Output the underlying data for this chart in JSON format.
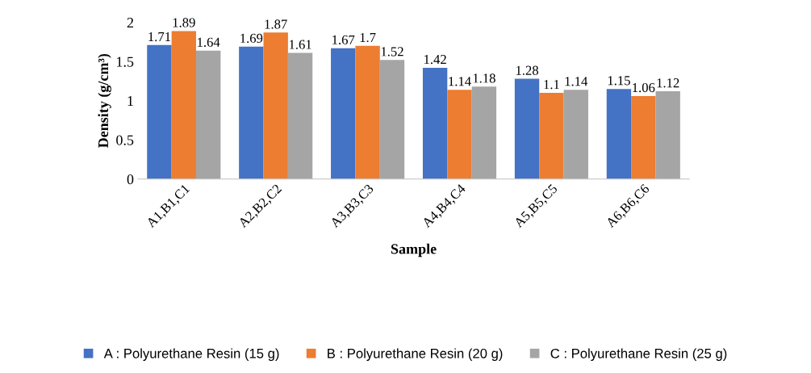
{
  "chart_data": {
    "type": "bar",
    "xlabel": "Sample",
    "ylabel": "Density (g/cm³)",
    "categories": [
      "A1,B1,C1",
      "A2,B2,C2",
      "A3,B3,C3",
      "A4,B4,C4",
      "A5,B5,C5",
      "A6,B6,C6"
    ],
    "series": [
      {
        "name": "A : Polyurethane Resin (15 g)",
        "color": "#4472c4",
        "values": [
          1.71,
          1.69,
          1.67,
          1.42,
          1.28,
          1.15
        ]
      },
      {
        "name": "B : Polyurethane Resin (20 g)",
        "color": "#ed7d31",
        "values": [
          1.89,
          1.87,
          1.7,
          1.14,
          1.1,
          1.06
        ]
      },
      {
        "name": "C : Polyurethane Resin (25 g)",
        "color": "#a5a5a5",
        "values": [
          1.64,
          1.61,
          1.52,
          1.18,
          1.14,
          1.12
        ]
      }
    ],
    "ylim": [
      0,
      2
    ],
    "yticks": [
      0,
      0.5,
      1,
      1.5,
      2
    ],
    "data_labels": true,
    "grid": false,
    "legend": "bottom"
  }
}
